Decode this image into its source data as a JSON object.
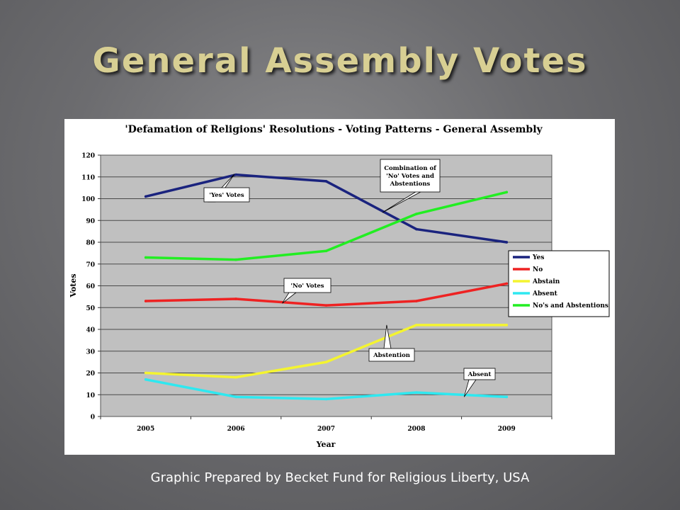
{
  "slide": {
    "title": "General Assembly Votes",
    "caption": "Graphic Prepared by Becket Fund for Religious Liberty, USA"
  },
  "chart_data": {
    "type": "line",
    "title": "'Defamation of Religions' Resolutions - Voting Patterns - General Assembly",
    "xlabel": "Year",
    "ylabel": "Votes",
    "categories": [
      "2005",
      "2006",
      "2007",
      "2008",
      "2009"
    ],
    "ylim": [
      0,
      120
    ],
    "yticks": [
      0,
      10,
      20,
      30,
      40,
      50,
      60,
      70,
      80,
      90,
      100,
      110,
      120
    ],
    "grid": true,
    "legend_position": "right",
    "series": [
      {
        "name": "Yes",
        "color": "#1a237e",
        "values": [
          101,
          111,
          108,
          86,
          80
        ]
      },
      {
        "name": "No",
        "color": "#ee2222",
        "values": [
          53,
          54,
          51,
          53,
          61
        ]
      },
      {
        "name": "Abstain",
        "color": "#f4f430",
        "values": [
          20,
          18,
          25,
          42,
          42
        ]
      },
      {
        "name": "Absent",
        "color": "#2ee8f0",
        "values": [
          17,
          9,
          8,
          11,
          9
        ]
      },
      {
        "name": "No's and Abstentions",
        "color": "#22ee22",
        "values": [
          73,
          72,
          76,
          93,
          103
        ]
      }
    ],
    "annotations": [
      {
        "lines": [
          "'Yes' Votes"
        ],
        "at_series": 0,
        "at_index": 1
      },
      {
        "lines": [
          "'No' Votes"
        ],
        "at_series": 1,
        "at_index": 2
      },
      {
        "lines": [
          "Abstention"
        ],
        "at_series": 2,
        "at_index": 3
      },
      {
        "lines": [
          "Absent"
        ],
        "at_series": 3,
        "at_index": 4
      },
      {
        "lines": [
          "Combination of",
          "'No' Votes and",
          "Abstentions"
        ],
        "at_series": 4,
        "at_index": 3
      }
    ]
  }
}
